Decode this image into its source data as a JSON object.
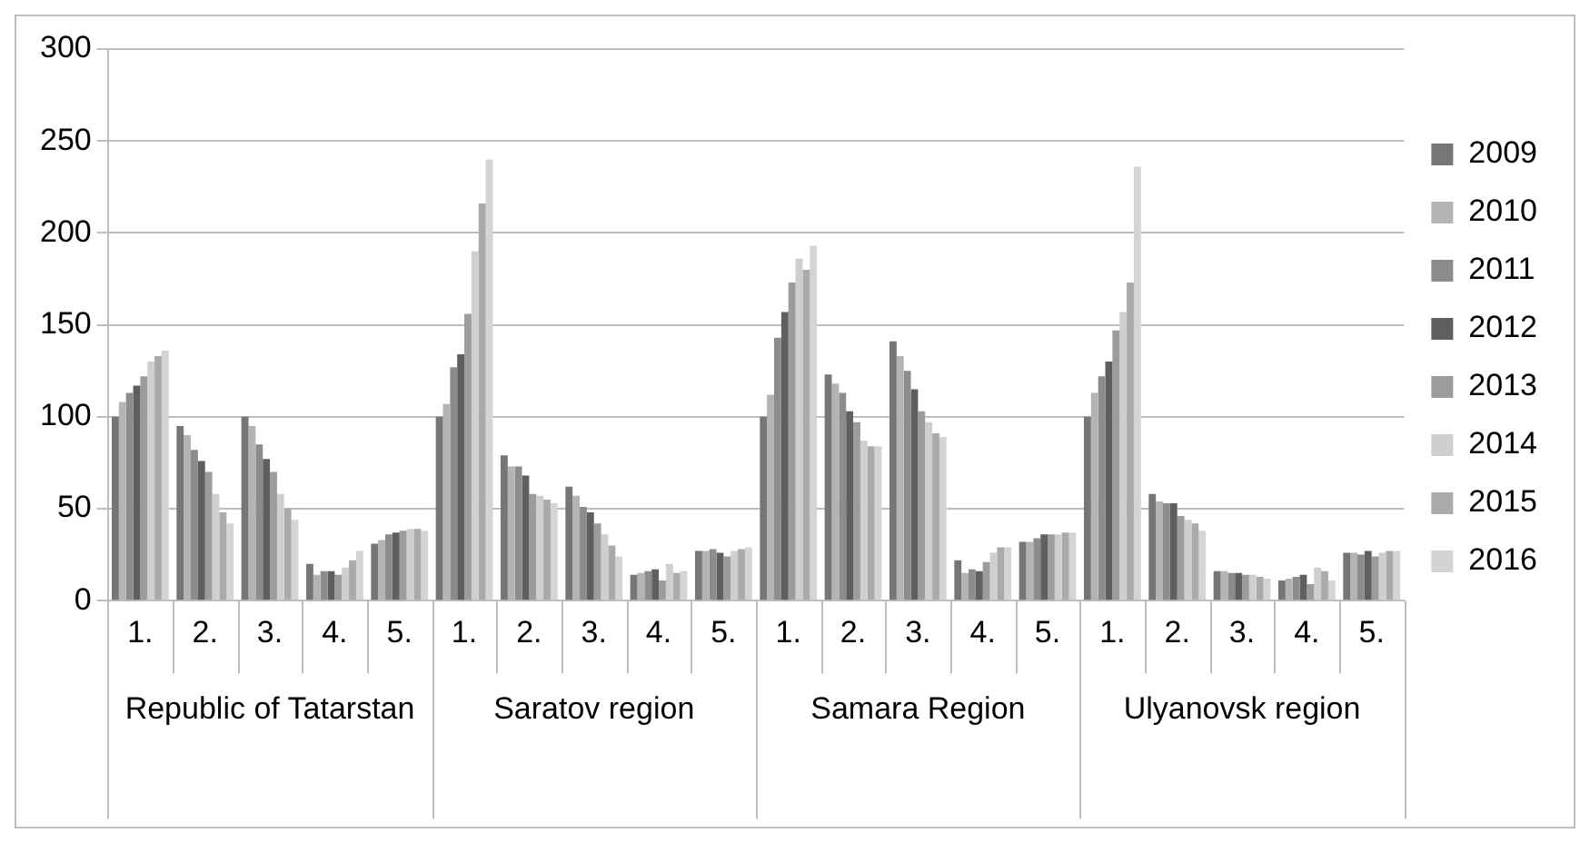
{
  "chart_data": {
    "type": "bar",
    "categories": [
      "1.",
      "2.",
      "3.",
      "4.",
      "5.",
      "1.",
      "2.",
      "3.",
      "4.",
      "5.",
      "1.",
      "2.",
      "3.",
      "4.",
      "5.",
      "1.",
      "2.",
      "3.",
      "4.",
      "5."
    ],
    "annotations": [
      "Republic of Tatarstan",
      "Saratov region",
      "Samara Region",
      "Ulyanovsk region"
    ],
    "series": [
      {
        "name": "2009",
        "color": "#767676",
        "values": [
          100,
          95,
          100,
          20,
          31,
          100,
          79,
          62,
          14,
          27,
          100,
          123,
          141,
          22,
          32,
          100,
          58,
          16,
          11,
          26
        ]
      },
      {
        "name": "2010",
        "color": "#b4b4b4",
        "values": [
          108,
          90,
          95,
          14,
          33,
          107,
          73,
          57,
          15,
          27,
          112,
          118,
          133,
          15,
          32,
          113,
          54,
          16,
          12,
          26
        ]
      },
      {
        "name": "2011",
        "color": "#8c8c8c",
        "values": [
          113,
          82,
          85,
          16,
          36,
          127,
          73,
          51,
          16,
          28,
          143,
          113,
          125,
          17,
          34,
          122,
          53,
          15,
          13,
          25
        ]
      },
      {
        "name": "2012",
        "color": "#5f5f5f",
        "values": [
          117,
          76,
          77,
          16,
          37,
          134,
          68,
          48,
          17,
          26,
          157,
          103,
          115,
          16,
          36,
          130,
          53,
          15,
          14,
          27
        ]
      },
      {
        "name": "2013",
        "color": "#9c9c9c",
        "values": [
          122,
          70,
          70,
          14,
          38,
          156,
          58,
          42,
          11,
          24,
          173,
          97,
          103,
          21,
          36,
          147,
          46,
          14,
          9,
          24
        ]
      },
      {
        "name": "2014",
        "color": "#cfcfcf",
        "values": [
          130,
          58,
          58,
          18,
          39,
          190,
          57,
          36,
          20,
          27,
          186,
          87,
          97,
          26,
          36,
          157,
          44,
          14,
          18,
          26
        ]
      },
      {
        "name": "2015",
        "color": "#aaaaaa",
        "values": [
          133,
          48,
          50,
          22,
          39,
          216,
          55,
          30,
          15,
          28,
          180,
          84,
          91,
          29,
          37,
          173,
          42,
          13,
          16,
          27
        ]
      },
      {
        "name": "2016",
        "color": "#d4d4d4",
        "values": [
          136,
          42,
          44,
          27,
          38,
          240,
          53,
          24,
          16,
          29,
          193,
          84,
          89,
          29,
          37,
          236,
          38,
          12,
          11,
          27
        ]
      }
    ],
    "ylim": [
      0,
      300
    ],
    "yticks": [
      0,
      50,
      100,
      150,
      200,
      250,
      300
    ],
    "grid": "y",
    "legend": "right"
  }
}
